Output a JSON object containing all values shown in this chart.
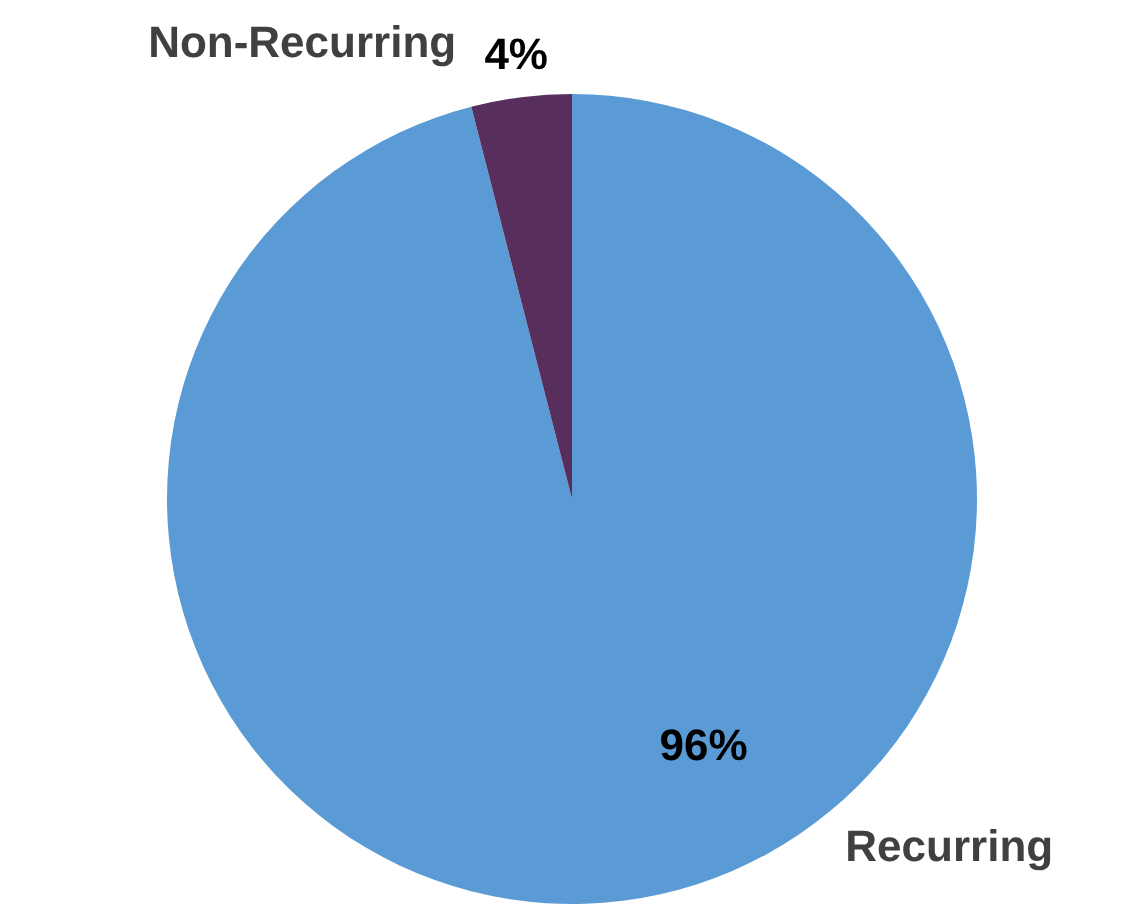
{
  "chart_data": {
    "type": "pie",
    "categories": [
      "Recurring",
      "Non-Recurring"
    ],
    "values": [
      96,
      4
    ],
    "colors": [
      "#5b9bd5",
      "#582f5c"
    ],
    "value_labels": [
      "96%",
      "4%"
    ],
    "legend": false
  }
}
